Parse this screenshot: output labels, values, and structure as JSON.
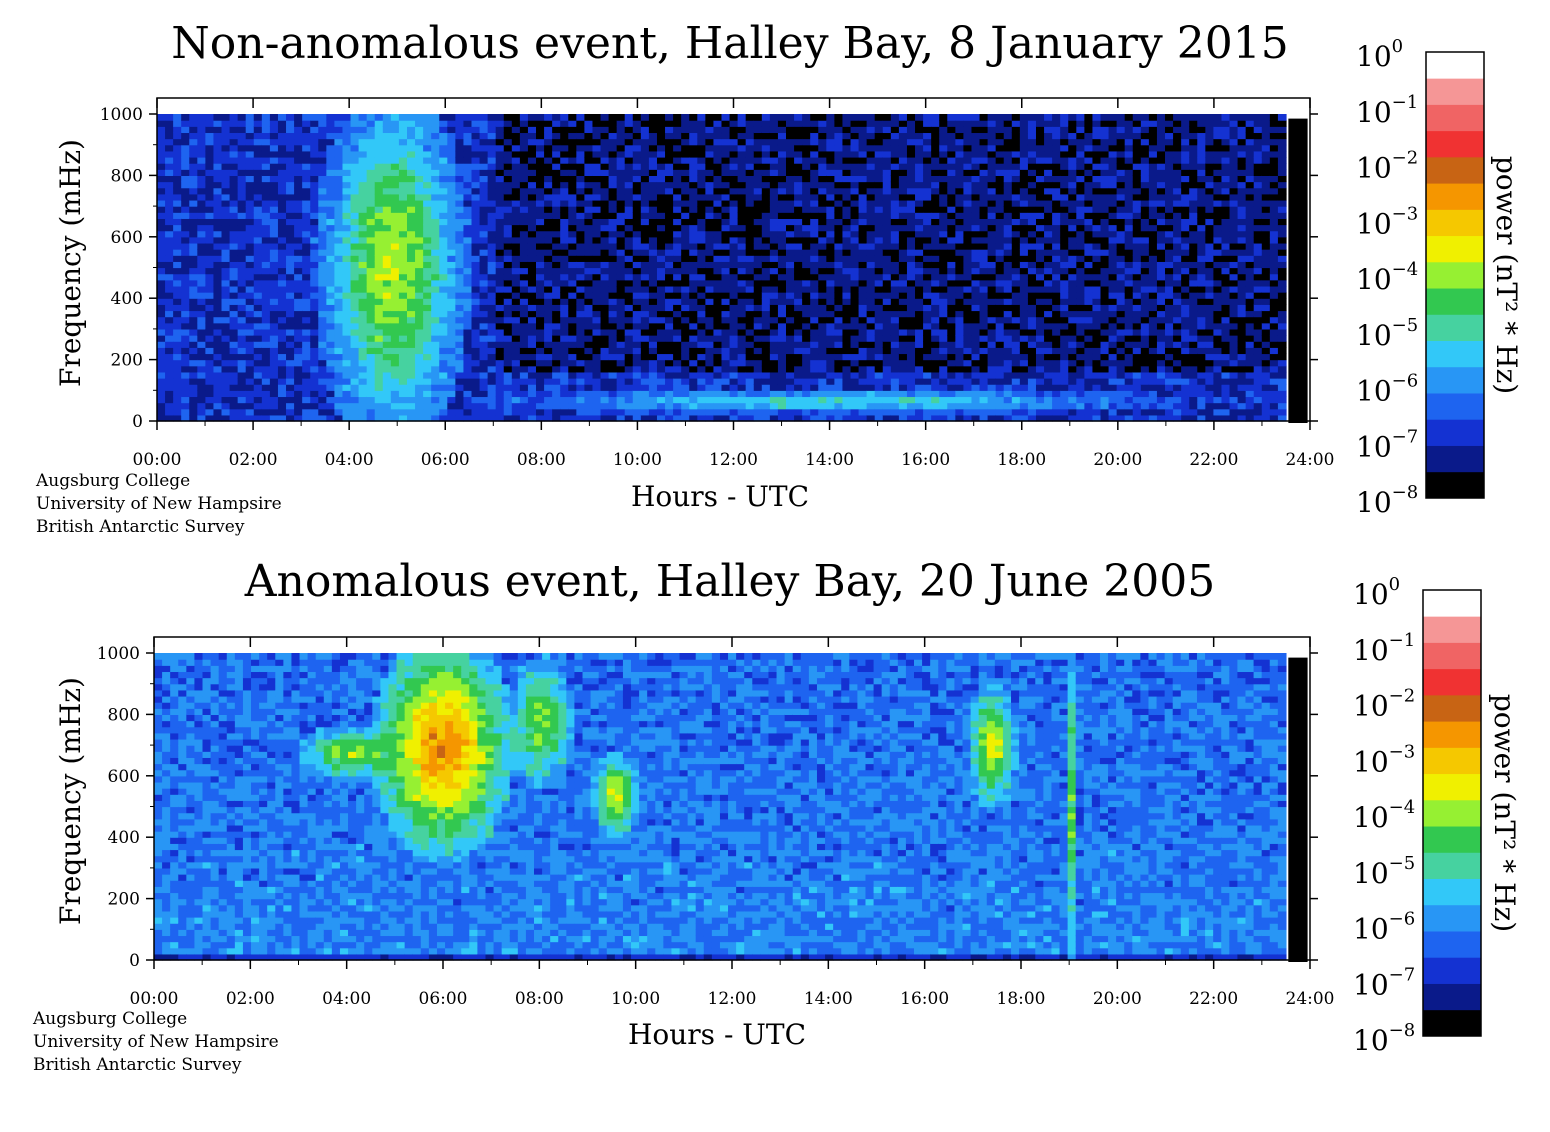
{
  "colors": {
    "colormap": [
      "#000000",
      "#0a1a8a",
      "#1432d2",
      "#1e64f0",
      "#2896f5",
      "#32c8f8",
      "#46d2a0",
      "#32c850",
      "#96f032",
      "#f0f000",
      "#f5c800",
      "#f59600",
      "#c86414",
      "#f03232",
      "#f06464",
      "#f59696",
      "#ffffff"
    ]
  },
  "chart_data": [
    {
      "type": "heatmap",
      "title": "Non-anomalous event, Halley Bay, 8 January 2015",
      "xlabel": "Hours - UTC",
      "ylabel": "Frequency (mHz)",
      "x_ticks": [
        "00:00",
        "02:00",
        "04:00",
        "06:00",
        "08:00",
        "10:00",
        "12:00",
        "14:00",
        "16:00",
        "18:00",
        "20:00",
        "22:00",
        "24:00"
      ],
      "y_ticks": [
        "0",
        "200",
        "400",
        "600",
        "800",
        "1000"
      ],
      "xlim": [
        0,
        24
      ],
      "ylim": [
        0,
        1000
      ],
      "data_end_hour": 23.5,
      "colorbar": {
        "label": "power (nT² * Hz)",
        "ticks": [
          {
            "base": "10",
            "exp": "0"
          },
          {
            "base": "10",
            "exp": "−1"
          },
          {
            "base": "10",
            "exp": "−2"
          },
          {
            "base": "10",
            "exp": "−3"
          },
          {
            "base": "10",
            "exp": "−4"
          },
          {
            "base": "10",
            "exp": "−5"
          },
          {
            "base": "10",
            "exp": "−6"
          },
          {
            "base": "10",
            "exp": "−7"
          },
          {
            "base": "10",
            "exp": "−8"
          }
        ],
        "scale": "log",
        "range": [
          1e-08,
          1
        ]
      },
      "credits": [
        "Augsburg College",
        "University of New Hampsire",
        "British Antarctic Survey"
      ],
      "features": [
        {
          "hours": [
            3.6,
            6.2
          ],
          "freq_mHz": [
            0,
            1000
          ],
          "log_power": -3.8
        },
        {
          "hours": [
            8.0,
            20.0
          ],
          "freq_mHz": [
            30,
            100
          ],
          "log_power": -5.2
        }
      ]
    },
    {
      "type": "heatmap",
      "title": "Anomalous event, Halley Bay, 20 June 2005",
      "xlabel": "Hours - UTC",
      "ylabel": "Frequency (mHz)",
      "x_ticks": [
        "00:00",
        "02:00",
        "04:00",
        "06:00",
        "08:00",
        "10:00",
        "12:00",
        "14:00",
        "16:00",
        "18:00",
        "20:00",
        "22:00",
        "24:00"
      ],
      "y_ticks": [
        "0",
        "200",
        "400",
        "600",
        "800",
        "1000"
      ],
      "xlim": [
        0,
        24
      ],
      "ylim": [
        0,
        1000
      ],
      "data_end_hour": 23.5,
      "colorbar": {
        "label": "power (nT² * Hz)",
        "ticks": [
          {
            "base": "10",
            "exp": "0"
          },
          {
            "base": "10",
            "exp": "−1"
          },
          {
            "base": "10",
            "exp": "−2"
          },
          {
            "base": "10",
            "exp": "−3"
          },
          {
            "base": "10",
            "exp": "−4"
          },
          {
            "base": "10",
            "exp": "−5"
          },
          {
            "base": "10",
            "exp": "−6"
          },
          {
            "base": "10",
            "exp": "−7"
          },
          {
            "base": "10",
            "exp": "−8"
          }
        ],
        "scale": "log",
        "range": [
          1e-08,
          1
        ]
      },
      "credits": [
        "Augsburg College",
        "University of New Hampsire",
        "British Antarctic Survey"
      ],
      "features": [
        {
          "hours": [
            4.8,
            7.2
          ],
          "freq_mHz": [
            400,
            1000
          ],
          "log_power": -2.5
        },
        {
          "hours": [
            3.2,
            5.0
          ],
          "freq_mHz": [
            600,
            750
          ],
          "log_power": -4.0
        },
        {
          "hours": [
            7.5,
            8.6
          ],
          "freq_mHz": [
            600,
            950
          ],
          "log_power": -4.0
        },
        {
          "hours": [
            9.2,
            10.0
          ],
          "freq_mHz": [
            420,
            650
          ],
          "log_power": -3.6
        },
        {
          "hours": [
            17.0,
            17.8
          ],
          "freq_mHz": [
            530,
            870
          ],
          "log_power": -3.5
        },
        {
          "hours": [
            19.0,
            19.1
          ],
          "freq_mHz": [
            0,
            1000
          ],
          "log_power": -4.5
        }
      ]
    }
  ]
}
